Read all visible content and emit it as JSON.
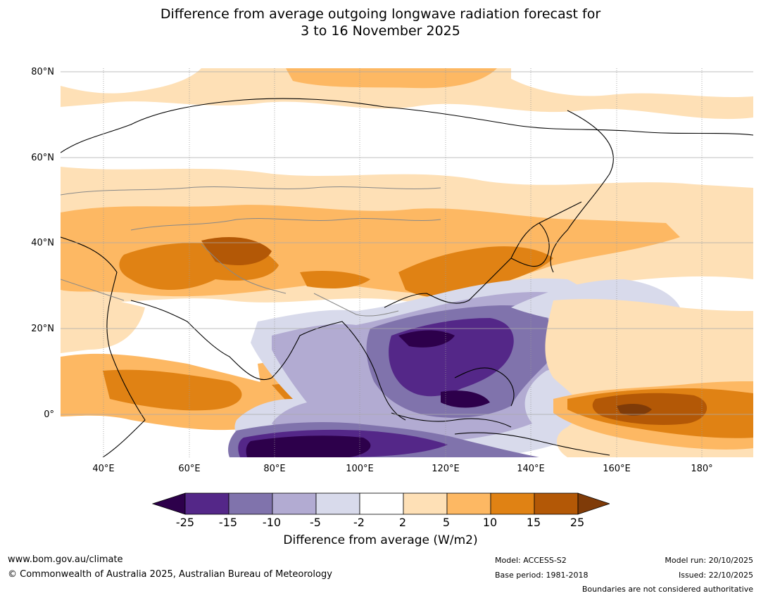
{
  "title": {
    "line1": "Difference from average outgoing longwave radiation forecast for",
    "line2": "3 to 16 November 2025"
  },
  "map": {
    "lat_labels": [
      "80°N",
      "60°N",
      "40°N",
      "20°N",
      "0°"
    ],
    "lon_labels": [
      "40°E",
      "60°E",
      "80°E",
      "100°E",
      "120°E",
      "140°E",
      "160°E",
      "180°"
    ],
    "lat_range": [
      -10,
      80
    ],
    "lon_range": [
      30,
      192
    ]
  },
  "colorbar": {
    "ticks": [
      "-25",
      "-15",
      "-10",
      "-5",
      "-2",
      "2",
      "5",
      "10",
      "15",
      "25"
    ],
    "colors": [
      "#2d004b",
      "#542788",
      "#8073ac",
      "#b2abd2",
      "#d8daeb",
      "#ffffff",
      "#fee0b6",
      "#fdb863",
      "#e08214",
      "#b35806",
      "#7f3b08"
    ],
    "label": "Difference from average (W/m2)"
  },
  "footer": {
    "website": "www.bom.gov.au/climate",
    "copyright": "© Commonwealth of Australia 2025, Australian Bureau of Meteorology",
    "model": "Model: ACCESS-S2",
    "base_period": "Base period: 1981-2018",
    "model_run": "Model run: 20/10/2025",
    "issued": "Issued: 22/10/2025",
    "disclaimer": "Boundaries are not considered authoritative"
  }
}
